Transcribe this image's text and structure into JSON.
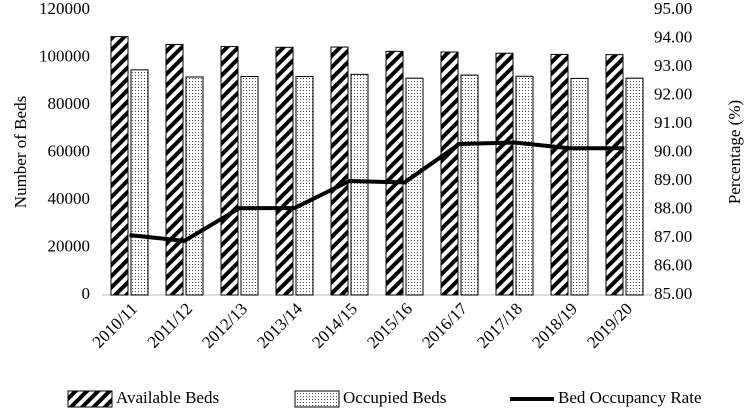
{
  "chart_data": {
    "type": "bar-line",
    "y_label": "Number of Beds",
    "y2_label": "Percentage (%)",
    "categories": [
      "2010/11",
      "2011/12",
      "2012/13",
      "2013/14",
      "2014/15",
      "2015/16",
      "2016/17",
      "2017/18",
      "2018/19",
      "2019/20"
    ],
    "series": [
      {
        "name": "Available Beds",
        "type": "bar",
        "pattern": "hatch",
        "color": "#000000",
        "values": [
          108800,
          105500,
          104600,
          104300,
          104400,
          102600,
          102300,
          101800,
          101300,
          101200
        ]
      },
      {
        "name": "Occupied Beds",
        "type": "bar",
        "pattern": "dots",
        "color": "#000000",
        "values": [
          94800,
          91800,
          92000,
          92000,
          92900,
          91300,
          92600,
          92100,
          91200,
          91300
        ]
      },
      {
        "name": "Bed Occupancy Rate",
        "type": "line",
        "axis": "y2",
        "color": "#000000",
        "values": [
          87.1,
          86.9,
          88.05,
          88.05,
          89.0,
          88.95,
          90.3,
          90.35,
          90.15,
          90.15
        ]
      }
    ],
    "ylim": [
      0,
      120000
    ],
    "yticks": [
      0,
      20000,
      40000,
      60000,
      80000,
      100000,
      120000
    ],
    "y2lim": [
      85,
      95
    ],
    "y2ticks": [
      {
        "value": 85,
        "label": "85.00"
      },
      {
        "value": 86,
        "label": "86.00"
      },
      {
        "value": 87,
        "label": "87.00"
      },
      {
        "value": 88,
        "label": "88.00"
      },
      {
        "value": 89,
        "label": "89.00"
      },
      {
        "value": 90,
        "label": "90.00"
      },
      {
        "value": 91,
        "label": "91.00"
      },
      {
        "value": 92,
        "label": "92.00"
      },
      {
        "value": 93,
        "label": "93.00"
      },
      {
        "value": 94,
        "label": "94.00"
      },
      {
        "value": 95,
        "label": "95.00"
      }
    ],
    "legend": "bottom"
  }
}
